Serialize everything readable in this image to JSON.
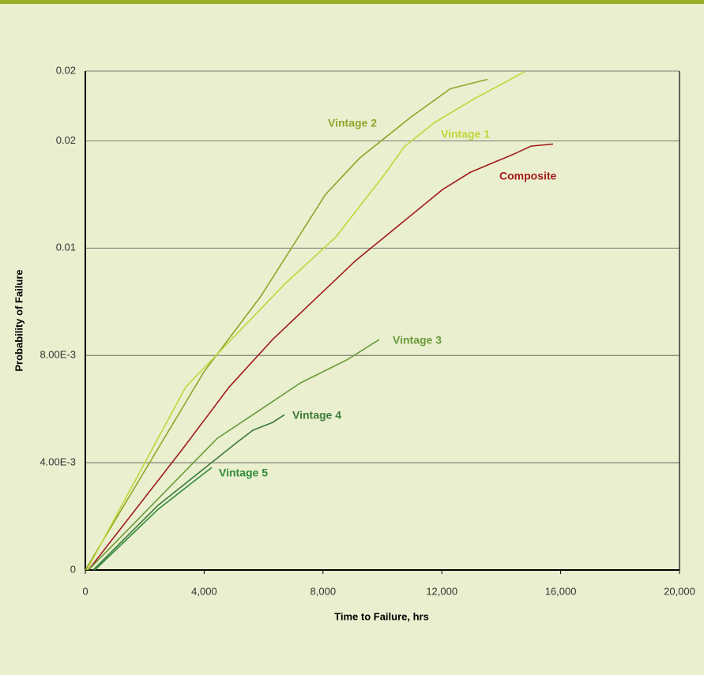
{
  "chart_data": {
    "type": "line",
    "xlabel": "Time to Failure, hrs",
    "ylabel": "Probability of Failure",
    "xlim": [
      0,
      20000
    ],
    "xticks": [
      0,
      {
        "value": 4000,
        "label": "4,000"
      },
      {
        "value": 8000,
        "label": "8,000"
      },
      {
        "value": 12000,
        "label": "12,000"
      },
      {
        "value": 16000,
        "label": "16,000"
      },
      {
        "value": 20000,
        "label": "20,000"
      }
    ],
    "ylim": [
      0,
      0.0186
    ],
    "yticks": [
      0,
      {
        "value": 0.004,
        "label": "4.00E-3"
      },
      {
        "value": 0.008,
        "label": "8.00E-3"
      },
      {
        "value": 0.012,
        "label": "0.01"
      },
      {
        "value": 0.016,
        "label": "0.02"
      },
      {
        "value": 0.0186,
        "label": "0.02"
      }
    ],
    "grid": true,
    "series": [
      {
        "name": "Vintage 2",
        "color": "#8fa52a",
        "x": [
          0,
          4000,
          5904,
          8085,
          9229,
          10957,
          12287,
          13537
        ],
        "values": [
          0,
          0.0074,
          0.0102,
          0.014,
          0.01535,
          0.01688,
          0.01794,
          0.01829
        ]
      },
      {
        "name": "Vintage 1",
        "color": "#c3d43a",
        "x": [
          53,
          3378,
          6702,
          8431,
          10080,
          10745,
          11755,
          13085,
          14814
        ],
        "values": [
          0,
          0.00682,
          0.01065,
          0.01241,
          0.01476,
          0.01579,
          0.01668,
          0.01756,
          0.01859
        ]
      },
      {
        "name": "Composite",
        "color": "#a31a1d",
        "x": [
          106,
          3245,
          4840,
          6303,
          9096,
          12021,
          12952,
          14415,
          15000,
          15745
        ],
        "values": [
          0,
          0.00447,
          0.00682,
          0.00859,
          0.01153,
          0.01418,
          0.01482,
          0.0155,
          0.0158,
          0.01588
        ]
      },
      {
        "name": "Vintage 3",
        "color": "#6a9a3a",
        "x": [
          106,
          4441,
          5638,
          7234,
          8830,
          9894
        ],
        "values": [
          0,
          0.00491,
          0.00579,
          0.00697,
          0.00785,
          0.00859
        ]
      },
      {
        "name": "Vintage 4",
        "color": "#3c7a3a",
        "x": [
          266,
          2447,
          5106,
          5638,
          6303,
          6702
        ],
        "values": [
          0,
          0.00241,
          0.00476,
          0.00521,
          0.0055,
          0.00579
        ]
      },
      {
        "name": "Vintage 5",
        "color": "#2f8a3a",
        "x": [
          319,
          2447,
          3298,
          4255
        ],
        "values": [
          0,
          0.00226,
          0.003,
          0.00382
        ]
      }
    ]
  }
}
